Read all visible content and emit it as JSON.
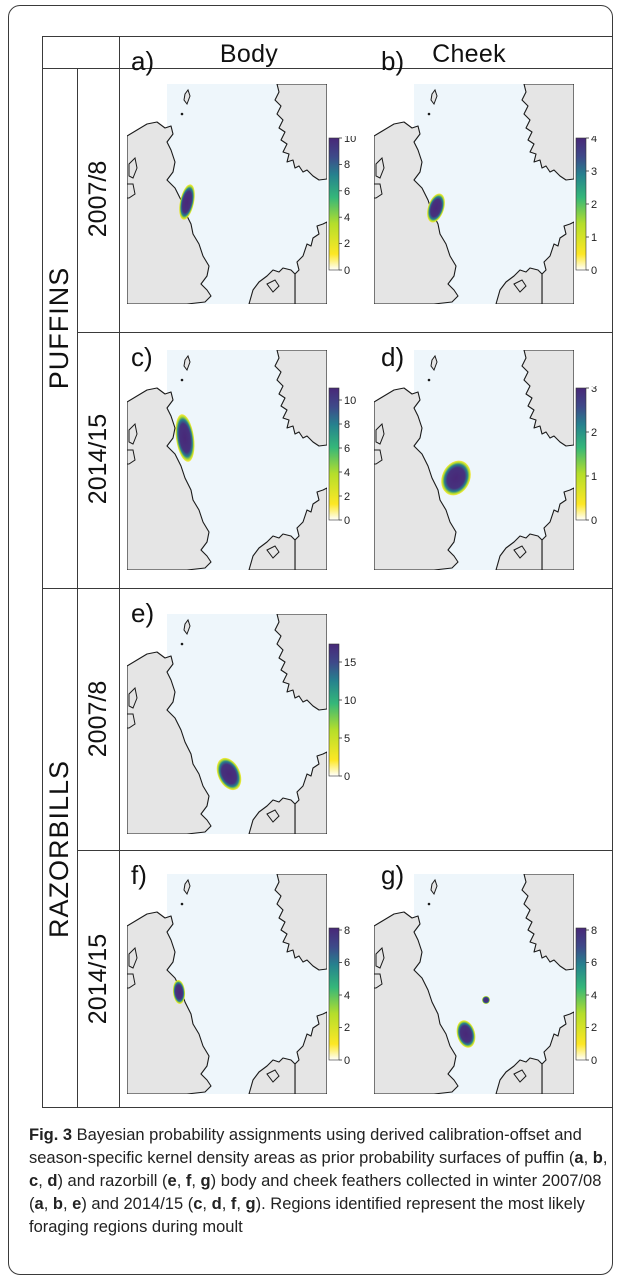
{
  "figure": {
    "column_headers": [
      "Body",
      "Cheek"
    ],
    "species": [
      "PUFFINS",
      "RAZORBILLS"
    ],
    "years": [
      "2007/8",
      "2014/15",
      "2007/8",
      "2014/15"
    ],
    "panels": [
      {
        "letter": "a)",
        "colorbar_ticks": [
          "10",
          "8",
          "6",
          "4",
          "2",
          "0"
        ]
      },
      {
        "letter": "b)",
        "colorbar_ticks": [
          "4",
          "3",
          "2",
          "1",
          "0"
        ]
      },
      {
        "letter": "c)",
        "colorbar_ticks": [
          "10",
          "8",
          "6",
          "4",
          "2",
          "0"
        ]
      },
      {
        "letter": "d)",
        "colorbar_ticks": [
          "3",
          "2",
          "1",
          "0"
        ]
      },
      {
        "letter": "e)",
        "colorbar_ticks": [
          "15",
          "10",
          "5",
          "0"
        ]
      },
      {
        "letter": "f)",
        "colorbar_ticks": [
          "8",
          "6",
          "4",
          "2",
          "0"
        ]
      },
      {
        "letter": "g)",
        "colorbar_ticks": [
          "8",
          "6",
          "4",
          "2",
          "0"
        ]
      }
    ]
  },
  "caption": {
    "label": "Fig. 3",
    "t1": " Bayesian probability assignments using derived calibration-offset and season-specific kernel density areas as prior probability surfaces of puffin (",
    "a": "a",
    "b": "b",
    "c": "c",
    "d": "d",
    "e": "e",
    "f": "f",
    "g": "g",
    "comma": ", ",
    "t2": ") and razorbill (",
    "t3": ") body and cheek feathers collected in winter 2007/08 (",
    "t4": ") and 2014/15 (",
    "t5": "). Regions identified represent the most likely foraging regions during moult"
  },
  "colors": {
    "sea": "#eef6fb",
    "land": "#e5e5e5",
    "outline": "#1a1a1a",
    "viridis_dark": "#482878",
    "viridis_mid": "#26828e",
    "viridis_light": "#b5de2b",
    "viridis_yellow": "#fde725"
  }
}
